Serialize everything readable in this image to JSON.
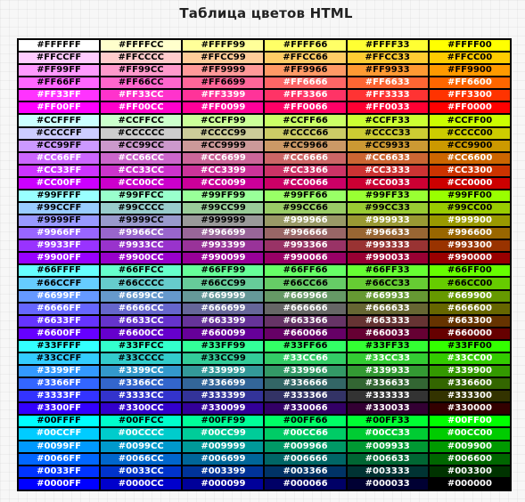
{
  "title": "Таблица цветов HTML",
  "rows": [
    [
      "#FFFFFF",
      "#FFFFCC",
      "#FFFF99",
      "#FFFF66",
      "#FFFF33",
      "#FFFF00"
    ],
    [
      "#FFCCFF",
      "#FFCCCC",
      "#FFCC99",
      "#FFCC66",
      "#FFCC33",
      "#FFCC00"
    ],
    [
      "#FF99FF",
      "#FF99CC",
      "#FF9999",
      "#FF9966",
      "#FF9933",
      "#FF9900"
    ],
    [
      "#FF66FF",
      "#FF66CC",
      "#FF6699",
      "#FF6666",
      "#FF6633",
      "#FF6600"
    ],
    [
      "#FF33FF",
      "#FF33CC",
      "#FF3399",
      "#FF3366",
      "#FF3333",
      "#FF3300"
    ],
    [
      "#FF00FF",
      "#FF00CC",
      "#FF0099",
      "#FF0066",
      "#FF0033",
      "#FF0000"
    ],
    [
      "#CCFFFF",
      "#CCFFCC",
      "#CCFF99",
      "#CCFF66",
      "#CCFF33",
      "#CCFF00"
    ],
    [
      "#CCCCFF",
      "#CCCCCC",
      "#CCCC99",
      "#CCCC66",
      "#CCCC33",
      "#CCCC00"
    ],
    [
      "#CC99FF",
      "#CC99CC",
      "#CC9999",
      "#CC9966",
      "#CC9933",
      "#CC9900"
    ],
    [
      "#CC66FF",
      "#CC66CC",
      "#CC6699",
      "#CC6666",
      "#CC6633",
      "#CC6600"
    ],
    [
      "#CC33FF",
      "#CC33CC",
      "#CC3399",
      "#CC3366",
      "#CC3333",
      "#CC3300"
    ],
    [
      "#CC00FF",
      "#CC00CC",
      "#CC0099",
      "#CC0066",
      "#CC0033",
      "#CC0000"
    ],
    [
      "#99FFFF",
      "#99FFCC",
      "#99FF99",
      "#99FF66",
      "#99FF33",
      "#99FF00"
    ],
    [
      "#99CCFF",
      "#99CCCC",
      "#99CC99",
      "#99CC66",
      "#99CC33",
      "#99CC00"
    ],
    [
      "#9999FF",
      "#9999CC",
      "#999999",
      "#999966",
      "#999933",
      "#999900"
    ],
    [
      "#9966FF",
      "#9966CC",
      "#996699",
      "#996666",
      "#996633",
      "#996600"
    ],
    [
      "#9933FF",
      "#9933CC",
      "#993399",
      "#993366",
      "#993333",
      "#993300"
    ],
    [
      "#9900FF",
      "#9900CC",
      "#990099",
      "#990066",
      "#990033",
      "#990000"
    ],
    [
      "#66FFFF",
      "#66FFCC",
      "#66FF99",
      "#66FF66",
      "#66FF33",
      "#66FF00"
    ],
    [
      "#66CCFF",
      "#66CCCC",
      "#66CC99",
      "#66CC66",
      "#66CC33",
      "#66CC00"
    ],
    [
      "#6699FF",
      "#6699CC",
      "#669999",
      "#669966",
      "#669933",
      "#669900"
    ],
    [
      "#6666FF",
      "#6666CC",
      "#666699",
      "#666666",
      "#666633",
      "#666600"
    ],
    [
      "#6633FF",
      "#6633CC",
      "#663399",
      "#663366",
      "#663333",
      "#663300"
    ],
    [
      "#6600FF",
      "#6600CC",
      "#660099",
      "#660066",
      "#660033",
      "#660000"
    ],
    [
      "#33FFFF",
      "#33FFCC",
      "#33FF99",
      "#33FF66",
      "#33FF33",
      "#33FF00"
    ],
    [
      "#33CCFF",
      "#33CCCC",
      "#33CC99",
      "#33CC66",
      "#33CC33",
      "#33CC00"
    ],
    [
      "#3399FF",
      "#3399CC",
      "#339999",
      "#339966",
      "#339933",
      "#339900"
    ],
    [
      "#3366FF",
      "#3366CC",
      "#336699",
      "#336666",
      "#336633",
      "#336600"
    ],
    [
      "#3333FF",
      "#3333CC",
      "#333399",
      "#333366",
      "#333333",
      "#333300"
    ],
    [
      "#3300FF",
      "#3300CC",
      "#330099",
      "#330066",
      "#330033",
      "#330000"
    ],
    [
      "#00FFFF",
      "#00FFCC",
      "#00FF99",
      "#00FF66",
      "#00FF33",
      "#00FF00"
    ],
    [
      "#00CCFF",
      "#00CCCC",
      "#00CC99",
      "#00CC66",
      "#00CC33",
      "#00CC00"
    ],
    [
      "#0099FF",
      "#0099CC",
      "#009999",
      "#009966",
      "#009933",
      "#009900"
    ],
    [
      "#0066FF",
      "#0066CC",
      "#006699",
      "#006666",
      "#006633",
      "#006600"
    ],
    [
      "#0033FF",
      "#0033CC",
      "#003399",
      "#003366",
      "#003333",
      "#003300"
    ],
    [
      "#0000FF",
      "#0000CC",
      "#000099",
      "#000066",
      "#000033",
      "#000000"
    ]
  ]
}
